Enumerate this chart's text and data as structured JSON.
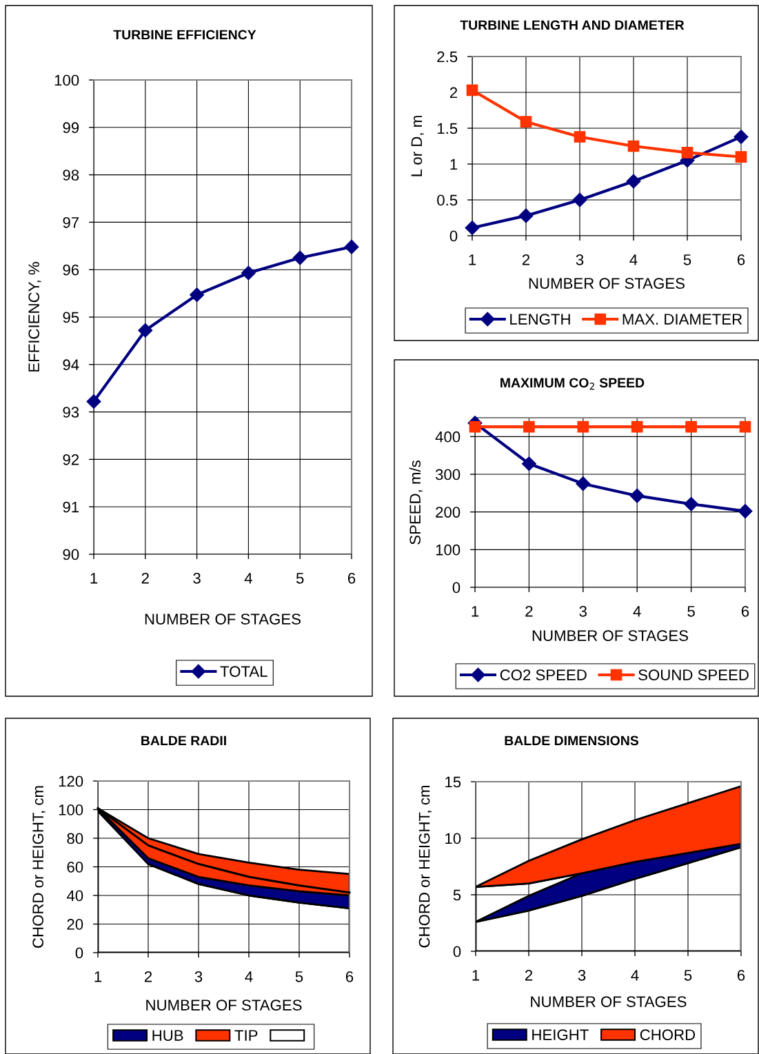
{
  "chart_data": [
    {
      "type": "line",
      "title": "TURBINE EFFICIENCY",
      "xlabel": "NUMBER OF STAGES",
      "ylabel": "EFFICIENCY, %",
      "x": [
        1,
        2,
        3,
        4,
        5,
        6
      ],
      "xlim": [
        1,
        6
      ],
      "xticks": [
        1,
        2,
        3,
        4,
        5,
        6
      ],
      "ylim": [
        90,
        100
      ],
      "yticks": [
        90,
        91,
        92,
        93,
        94,
        95,
        96,
        97,
        98,
        99,
        100
      ],
      "grid": true,
      "legend": "bottom",
      "marker": "diamond",
      "series": [
        {
          "name": "TOTAL",
          "color": "#000080",
          "values": [
            93.22,
            94.72,
            95.47,
            95.93,
            96.25,
            96.48
          ]
        }
      ]
    },
    {
      "type": "line",
      "title": "TURBINE LENGTH AND DIAMETER",
      "xlabel": "NUMBER OF STAGES",
      "ylabel": "L or D, m",
      "x": [
        1,
        2,
        3,
        4,
        5,
        6
      ],
      "xlim": [
        1,
        6
      ],
      "xticks": [
        1,
        2,
        3,
        4,
        5,
        6
      ],
      "ylim": [
        0,
        2.5
      ],
      "yticks": [
        0,
        0.5,
        1,
        1.5,
        2,
        2.5
      ],
      "grid": true,
      "legend": "bottom",
      "series": [
        {
          "name": "LENGTH",
          "color": "#000080",
          "marker": "diamond",
          "values": [
            0.11,
            0.28,
            0.5,
            0.76,
            1.05,
            1.38
          ]
        },
        {
          "name": "MAX. DIAMETER",
          "color": "#ff3300",
          "marker": "square",
          "values": [
            2.03,
            1.59,
            1.38,
            1.25,
            1.16,
            1.1
          ]
        }
      ]
    },
    {
      "type": "line",
      "title": "MAXIMUM CO$_{2}$ SPEED",
      "xlabel": "NUMBER OF STAGES",
      "ylabel": "SPEED, m/s",
      "x": [
        1,
        2,
        3,
        4,
        5,
        6
      ],
      "xlim": [
        1,
        6
      ],
      "xticks": [
        1,
        2,
        3,
        4,
        5,
        6
      ],
      "ylim": [
        0,
        450
      ],
      "yticks": [
        0,
        100,
        200,
        300,
        400
      ],
      "grid": true,
      "legend": "bottom",
      "series": [
        {
          "name": "CO2 SPEED",
          "color": "#000080",
          "marker": "diamond",
          "values": [
            436,
            328,
            275,
            243,
            221,
            202
          ]
        },
        {
          "name": "SOUND SPEED",
          "color": "#ff3300",
          "marker": "square",
          "values": [
            426,
            426,
            426,
            426,
            426,
            426
          ]
        }
      ]
    },
    {
      "type": "area",
      "title": "BALDE RADII",
      "xlabel": "NUMBER OF STAGES",
      "ylabel": "CHORD or HEIGHT, cm",
      "x": [
        1,
        2,
        3,
        4,
        5,
        6
      ],
      "xlim": [
        1,
        6
      ],
      "xticks": [
        1,
        2,
        3,
        4,
        5,
        6
      ],
      "ylim": [
        0,
        120
      ],
      "yticks": [
        0,
        20,
        40,
        60,
        80,
        100,
        120
      ],
      "grid": true,
      "legend": "bottom",
      "stacked": true,
      "series": [
        {
          "color": "#ffffff",
          "values": [
            99,
            62,
            48,
            40,
            35,
            31
          ]
        },
        {
          "name": "HUB",
          "color": "#000080",
          "values": [
            2,
            4,
            5,
            7,
            8,
            9
          ]
        },
        {
          "name": "TIP",
          "color": "#ff3300",
          "values": [
            0,
            14,
            16,
            16,
            15,
            15
          ]
        },
        {
          "type": "line",
          "color": "#000000",
          "values": [
            101,
            75,
            62,
            53,
            47,
            42
          ]
        }
      ]
    },
    {
      "type": "area",
      "title": "BALDE DIMENSIONS",
      "xlabel": "NUMBER OF STAGES",
      "ylabel": "CHORD or HEIGHT, cm",
      "x": [
        1,
        2,
        3,
        4,
        5,
        6
      ],
      "xlim": [
        1,
        6
      ],
      "xticks": [
        1,
        2,
        3,
        4,
        5,
        6
      ],
      "ylim": [
        0,
        15
      ],
      "yticks": [
        0,
        5,
        10,
        15
      ],
      "grid": true,
      "legend": "bottom",
      "series": [
        {
          "name": "HEIGHT",
          "color": "#000080",
          "values": [
            2.6,
            4.9,
            6.9,
            7.9,
            8.7,
            9.5
          ]
        },
        {
          "color": "#ffffff",
          "values": [
            2.6,
            3.6,
            4.9,
            6.4,
            7.8,
            9.2
          ]
        },
        {
          "name": "CHORD",
          "color": "#ff3300",
          "values": [
            5.7,
            8.0,
            9.9,
            11.6,
            13.1,
            14.6
          ]
        },
        {
          "color": "#ffffff",
          "values": [
            5.7,
            6.0,
            6.9,
            7.9,
            8.7,
            9.5
          ]
        }
      ]
    }
  ]
}
